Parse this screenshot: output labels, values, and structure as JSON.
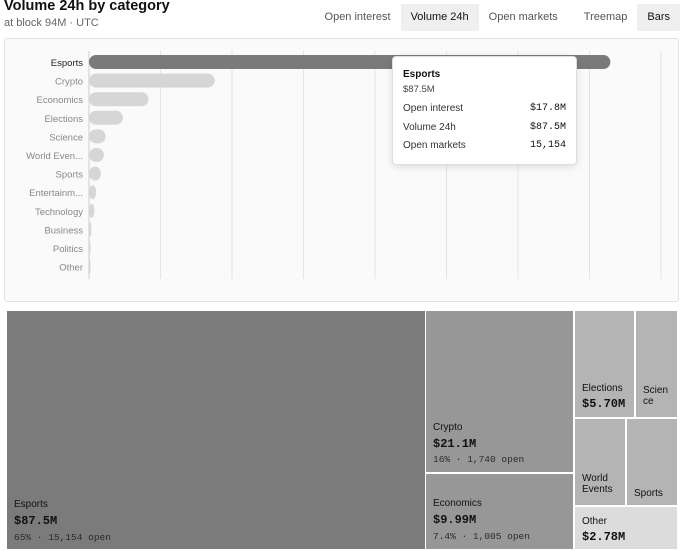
{
  "header": {
    "title": "Volume 24h by category",
    "subtitle": "at block 94M · UTC"
  },
  "tabs": {
    "metric": [
      "Open interest",
      "Volume 24h",
      "Open markets"
    ],
    "view": [
      "Treemap",
      "Bars"
    ],
    "active_metric": 1,
    "active_view": 1
  },
  "colors": {
    "bar_highlight": "#7a7a7a",
    "bar_default": "#d6d6d6",
    "tile_dark": "#7b7b7b",
    "tile_mid": "#979797",
    "tile_light": "#b4b4b4",
    "tile_pale": "#dcdcdc"
  },
  "tooltip": {
    "title": "Esports",
    "subtitle": "$87.5M",
    "rows": [
      {
        "label": "Open interest",
        "value": "$17.8M"
      },
      {
        "label": "Volume 24h",
        "value": "$87.5M"
      },
      {
        "label": "Open markets",
        "value": "15,154"
      }
    ]
  },
  "chart_data": [
    {
      "type": "bar",
      "orientation": "horizontal",
      "categories": [
        "Esports",
        "Crypto",
        "Economics",
        "Elections",
        "Science",
        "World Even...",
        "Sports",
        "Entertainm...",
        "Technology",
        "Business",
        "Politics",
        "Other"
      ],
      "values": [
        87.5,
        21.1,
        9.99,
        5.7,
        2.78,
        2.5,
        2.0,
        1.2,
        0.9,
        0.4,
        0.2,
        0.1
      ],
      "highlighted": "Esports",
      "xlim": [
        0,
        96
      ],
      "grid": true
    },
    {
      "type": "treemap",
      "tiles": [
        {
          "name": "Esports",
          "value": "$87.5M",
          "detail": "65% · 15,154 open",
          "tone": "dark"
        },
        {
          "name": "Crypto",
          "value": "$21.1M",
          "detail": "16% · 1,740 open",
          "tone": "mid"
        },
        {
          "name": "Economics",
          "value": "$9.99M",
          "detail": "7.4% · 1,005 open",
          "tone": "mid"
        },
        {
          "name": "Elections",
          "value": "$5.70M",
          "detail": "",
          "tone": "light"
        },
        {
          "name": "Scien ce",
          "value": "",
          "detail": "",
          "tone": "light"
        },
        {
          "name": "World Events",
          "value": "",
          "detail": "",
          "tone": "light"
        },
        {
          "name": "Sports",
          "value": "",
          "detail": "",
          "tone": "light"
        },
        {
          "name": "Other",
          "value": "$2.78M",
          "detail": "",
          "tone": "pale"
        }
      ]
    }
  ]
}
